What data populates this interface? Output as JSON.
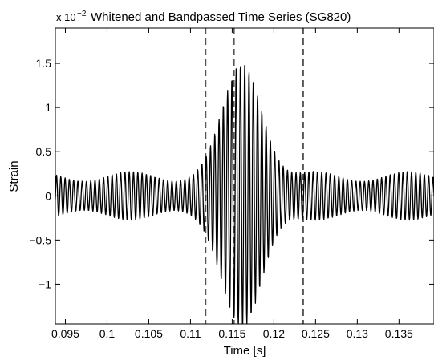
{
  "chart_data": {
    "type": "line",
    "title": "Whitened and Bandpassed Time Series (SG820)",
    "xlabel": "Time [s]",
    "ylabel": "Strain",
    "y_multiplier": {
      "base": "x 10",
      "exponent": "−2"
    },
    "xlim": [
      0.0938,
      0.1392
    ],
    "ylim": [
      -1.45,
      1.9
    ],
    "xticks": [
      0.095,
      0.1,
      0.105,
      0.11,
      0.115,
      0.12,
      0.125,
      0.13,
      0.135
    ],
    "xtick_labels": [
      "0.095",
      "0.1",
      "0.105",
      "0.11",
      "0.115",
      "0.12",
      "0.125",
      "0.13",
      "0.135"
    ],
    "yticks": [
      -1,
      -0.5,
      0,
      0.5,
      1,
      1.5
    ],
    "ytick_labels": [
      "−1",
      "−0.5",
      "0",
      "0.5",
      "1",
      "1.5"
    ],
    "grid": false,
    "series": [
      {
        "color": "#000000",
        "signal": {
          "t_start": 0.0938,
          "t_end": 0.1392,
          "frequency_hz": 1950,
          "envelope_center": 0.1163,
          "envelope_peak": 1.48,
          "envelope_width": 0.0033,
          "baseline_amplitude": 0.22
        }
      }
    ],
    "markers": {
      "style": "dashed",
      "color": "#555555",
      "x": [
        0.1118,
        0.1152,
        0.1235
      ]
    }
  }
}
